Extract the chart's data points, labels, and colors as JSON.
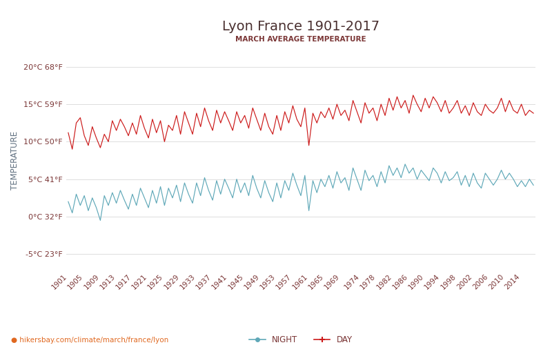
{
  "title": "Lyon France 1901-2017",
  "subtitle": "MARCH AVERAGE TEMPERATURE",
  "ylabel": "TEMPERATURE",
  "watermark": "hikersbay.com/climate/march/france/lyon",
  "year_start": 1901,
  "year_end": 2017,
  "ylim": [
    -7,
    22
  ],
  "yticks_c": [
    -5,
    0,
    5,
    10,
    15,
    20
  ],
  "yticks_f": [
    23,
    32,
    41,
    50,
    59,
    68
  ],
  "xticks": [
    1901,
    1905,
    1909,
    1913,
    1917,
    1921,
    1925,
    1929,
    1933,
    1937,
    1941,
    1945,
    1949,
    1953,
    1957,
    1961,
    1965,
    1969,
    1974,
    1978,
    1982,
    1986,
    1990,
    1994,
    1998,
    2002,
    2006,
    2010,
    2014
  ],
  "title_color": "#4a3030",
  "subtitle_color": "#7a3535",
  "tick_color": "#7a3535",
  "ylabel_color": "#607080",
  "grid_color": "#d8d8d8",
  "day_color": "#cc1a1a",
  "night_color": "#5fa8b8",
  "background_color": "#ffffff",
  "watermark_color": "#e06820",
  "legend_night_color": "#5fa8b8",
  "legend_day_color": "#cc1a1a",
  "day_data": [
    11.2,
    9.0,
    12.5,
    13.2,
    10.8,
    9.5,
    12.0,
    10.5,
    9.2,
    11.0,
    10.0,
    12.8,
    11.5,
    13.0,
    12.0,
    10.8,
    12.5,
    11.0,
    13.5,
    11.8,
    10.5,
    13.0,
    11.2,
    12.8,
    10.0,
    12.2,
    11.5,
    13.5,
    11.0,
    14.0,
    12.5,
    11.0,
    13.8,
    12.0,
    14.5,
    12.8,
    11.5,
    14.2,
    12.5,
    14.0,
    12.8,
    11.5,
    14.0,
    12.5,
    13.5,
    11.8,
    14.5,
    13.0,
    11.5,
    13.8,
    12.0,
    11.0,
    13.5,
    11.5,
    14.0,
    12.5,
    14.8,
    13.0,
    12.0,
    14.5,
    9.5,
    13.8,
    12.5,
    14.0,
    13.2,
    14.5,
    13.0,
    15.0,
    13.5,
    14.2,
    12.8,
    15.5,
    14.0,
    12.5,
    15.2,
    13.8,
    14.5,
    12.8,
    15.0,
    13.5,
    15.8,
    14.2,
    16.0,
    14.5,
    15.5,
    13.8,
    16.2,
    15.0,
    14.0,
    15.8,
    14.5,
    16.0,
    15.2,
    14.0,
    15.5,
    13.8,
    14.5,
    15.5,
    13.8,
    14.8,
    13.5,
    15.2,
    14.0,
    13.5,
    15.0,
    14.2,
    13.8,
    14.5,
    15.8,
    14.0,
    15.5,
    14.2,
    13.8,
    15.0,
    13.5,
    14.2,
    13.8
  ],
  "night_data": [
    2.0,
    0.5,
    3.0,
    1.5,
    2.8,
    0.8,
    2.5,
    1.2,
    -0.5,
    2.8,
    1.5,
    3.2,
    1.8,
    3.5,
    2.2,
    1.0,
    3.0,
    1.5,
    3.8,
    2.5,
    1.2,
    3.5,
    1.8,
    4.0,
    1.5,
    3.8,
    2.5,
    4.2,
    2.0,
    4.5,
    3.0,
    1.8,
    4.5,
    2.8,
    5.2,
    3.5,
    2.2,
    4.8,
    3.0,
    5.0,
    3.8,
    2.5,
    5.0,
    3.2,
    4.5,
    2.8,
    5.5,
    3.8,
    2.5,
    4.8,
    3.2,
    2.0,
    4.5,
    2.5,
    4.8,
    3.5,
    5.8,
    4.2,
    2.8,
    5.5,
    0.8,
    4.8,
    3.2,
    5.0,
    4.0,
    5.5,
    3.8,
    6.0,
    4.5,
    5.2,
    3.5,
    6.5,
    5.0,
    3.5,
    6.2,
    4.8,
    5.5,
    4.0,
    6.0,
    4.5,
    6.8,
    5.5,
    6.5,
    5.2,
    7.0,
    5.8,
    6.5,
    5.0,
    6.2,
    5.5,
    4.8,
    6.5,
    5.8,
    4.5,
    6.0,
    4.8,
    5.2,
    6.0,
    4.2,
    5.5,
    4.0,
    5.8,
    4.5,
    3.8,
    5.8,
    5.0,
    4.2,
    5.0,
    6.2,
    5.0,
    5.8,
    5.0,
    4.0,
    4.8,
    4.0,
    5.0,
    4.2
  ]
}
